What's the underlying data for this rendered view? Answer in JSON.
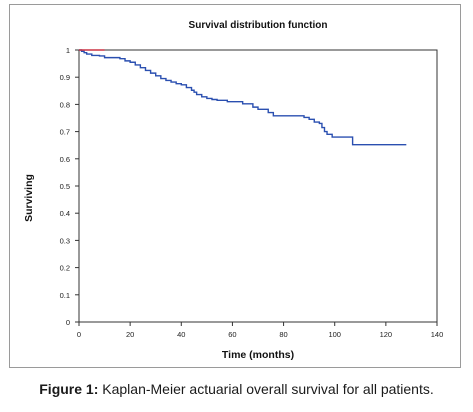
{
  "chart_data": {
    "type": "line",
    "title": "Survival distribution function",
    "xlabel": "Time (months)",
    "ylabel": "Surviving",
    "xlim": [
      0,
      140
    ],
    "ylim": [
      0,
      1
    ],
    "x_ticks": [
      "0",
      "20",
      "40",
      "60",
      "80",
      "100",
      "120",
      "140"
    ],
    "y_ticks": [
      "0",
      "0.1",
      "0.2",
      "0.3",
      "0.4",
      "0.5",
      "0.6",
      "0.7",
      "0.8",
      "0.9",
      "1"
    ],
    "grid": false,
    "step": true,
    "series": [
      {
        "color": "#2a4fb0",
        "points": [
          [
            0,
            1.0
          ],
          [
            1,
            0.995
          ],
          [
            2,
            0.99
          ],
          [
            3,
            0.985
          ],
          [
            5,
            0.98
          ],
          [
            8,
            0.978
          ],
          [
            10,
            0.972
          ],
          [
            16,
            0.968
          ],
          [
            18,
            0.96
          ],
          [
            20,
            0.955
          ],
          [
            22,
            0.945
          ],
          [
            24,
            0.935
          ],
          [
            26,
            0.925
          ],
          [
            28,
            0.915
          ],
          [
            30,
            0.905
          ],
          [
            32,
            0.895
          ],
          [
            34,
            0.888
          ],
          [
            36,
            0.882
          ],
          [
            38,
            0.876
          ],
          [
            40,
            0.872
          ],
          [
            42,
            0.862
          ],
          [
            44,
            0.852
          ],
          [
            45,
            0.845
          ],
          [
            46,
            0.836
          ],
          [
            48,
            0.828
          ],
          [
            50,
            0.822
          ],
          [
            52,
            0.818
          ],
          [
            54,
            0.815
          ],
          [
            58,
            0.81
          ],
          [
            64,
            0.802
          ],
          [
            68,
            0.79
          ],
          [
            70,
            0.782
          ],
          [
            74,
            0.77
          ],
          [
            76,
            0.758
          ],
          [
            88,
            0.752
          ],
          [
            90,
            0.745
          ],
          [
            92,
            0.735
          ],
          [
            94,
            0.73
          ],
          [
            95,
            0.715
          ],
          [
            96,
            0.7
          ],
          [
            97,
            0.69
          ],
          [
            99,
            0.68
          ],
          [
            107,
            0.652
          ],
          [
            128,
            0.652
          ]
        ]
      },
      {
        "color": "#cc3344",
        "points": [
          [
            0,
            1.0
          ],
          [
            10,
            1.0
          ]
        ]
      }
    ]
  },
  "caption": {
    "label": "Figure 1:",
    "text": " Kaplan-Meier actuarial overall survival for all patients."
  }
}
